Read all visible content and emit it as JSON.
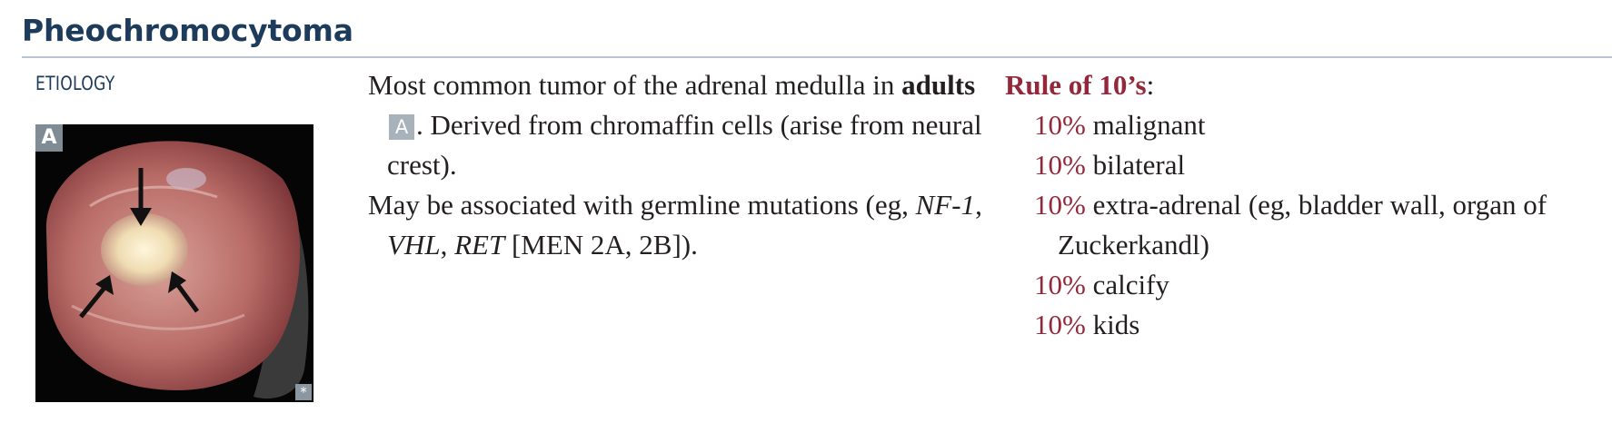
{
  "title": "Pheochromocytoma",
  "section_label": "ETIOLOGY",
  "figure": {
    "badge": "A",
    "corner_mark": "*"
  },
  "col1": {
    "p1_text_a": "Most common tumor of the adrenal medulla in ",
    "p1_bold": "adults",
    "p1_badge": "A",
    "p1_text_b": ". Derived from chromaffin cells (arise from neural crest).",
    "p2_text_a": "May be associated with germline mutations (eg, ",
    "p2_gene1": "NF-1",
    "p2_sep1": ", ",
    "p2_gene2": "VHL",
    "p2_sep2": ", ",
    "p2_gene3": "RET",
    "p2_text_b": " [MEN 2A, 2B])."
  },
  "col2": {
    "rule_title": "Rule of 10’s",
    "rule_colon": ":",
    "items": [
      {
        "pct": "10%",
        "text": " malignant"
      },
      {
        "pct": "10%",
        "text": " bilateral"
      },
      {
        "pct": "10%",
        "text": " extra-adrenal (eg, bladder wall, organ of Zuckerkandl)"
      },
      {
        "pct": "10%",
        "text": " calcify"
      },
      {
        "pct": "10%",
        "text": " kids"
      }
    ]
  }
}
